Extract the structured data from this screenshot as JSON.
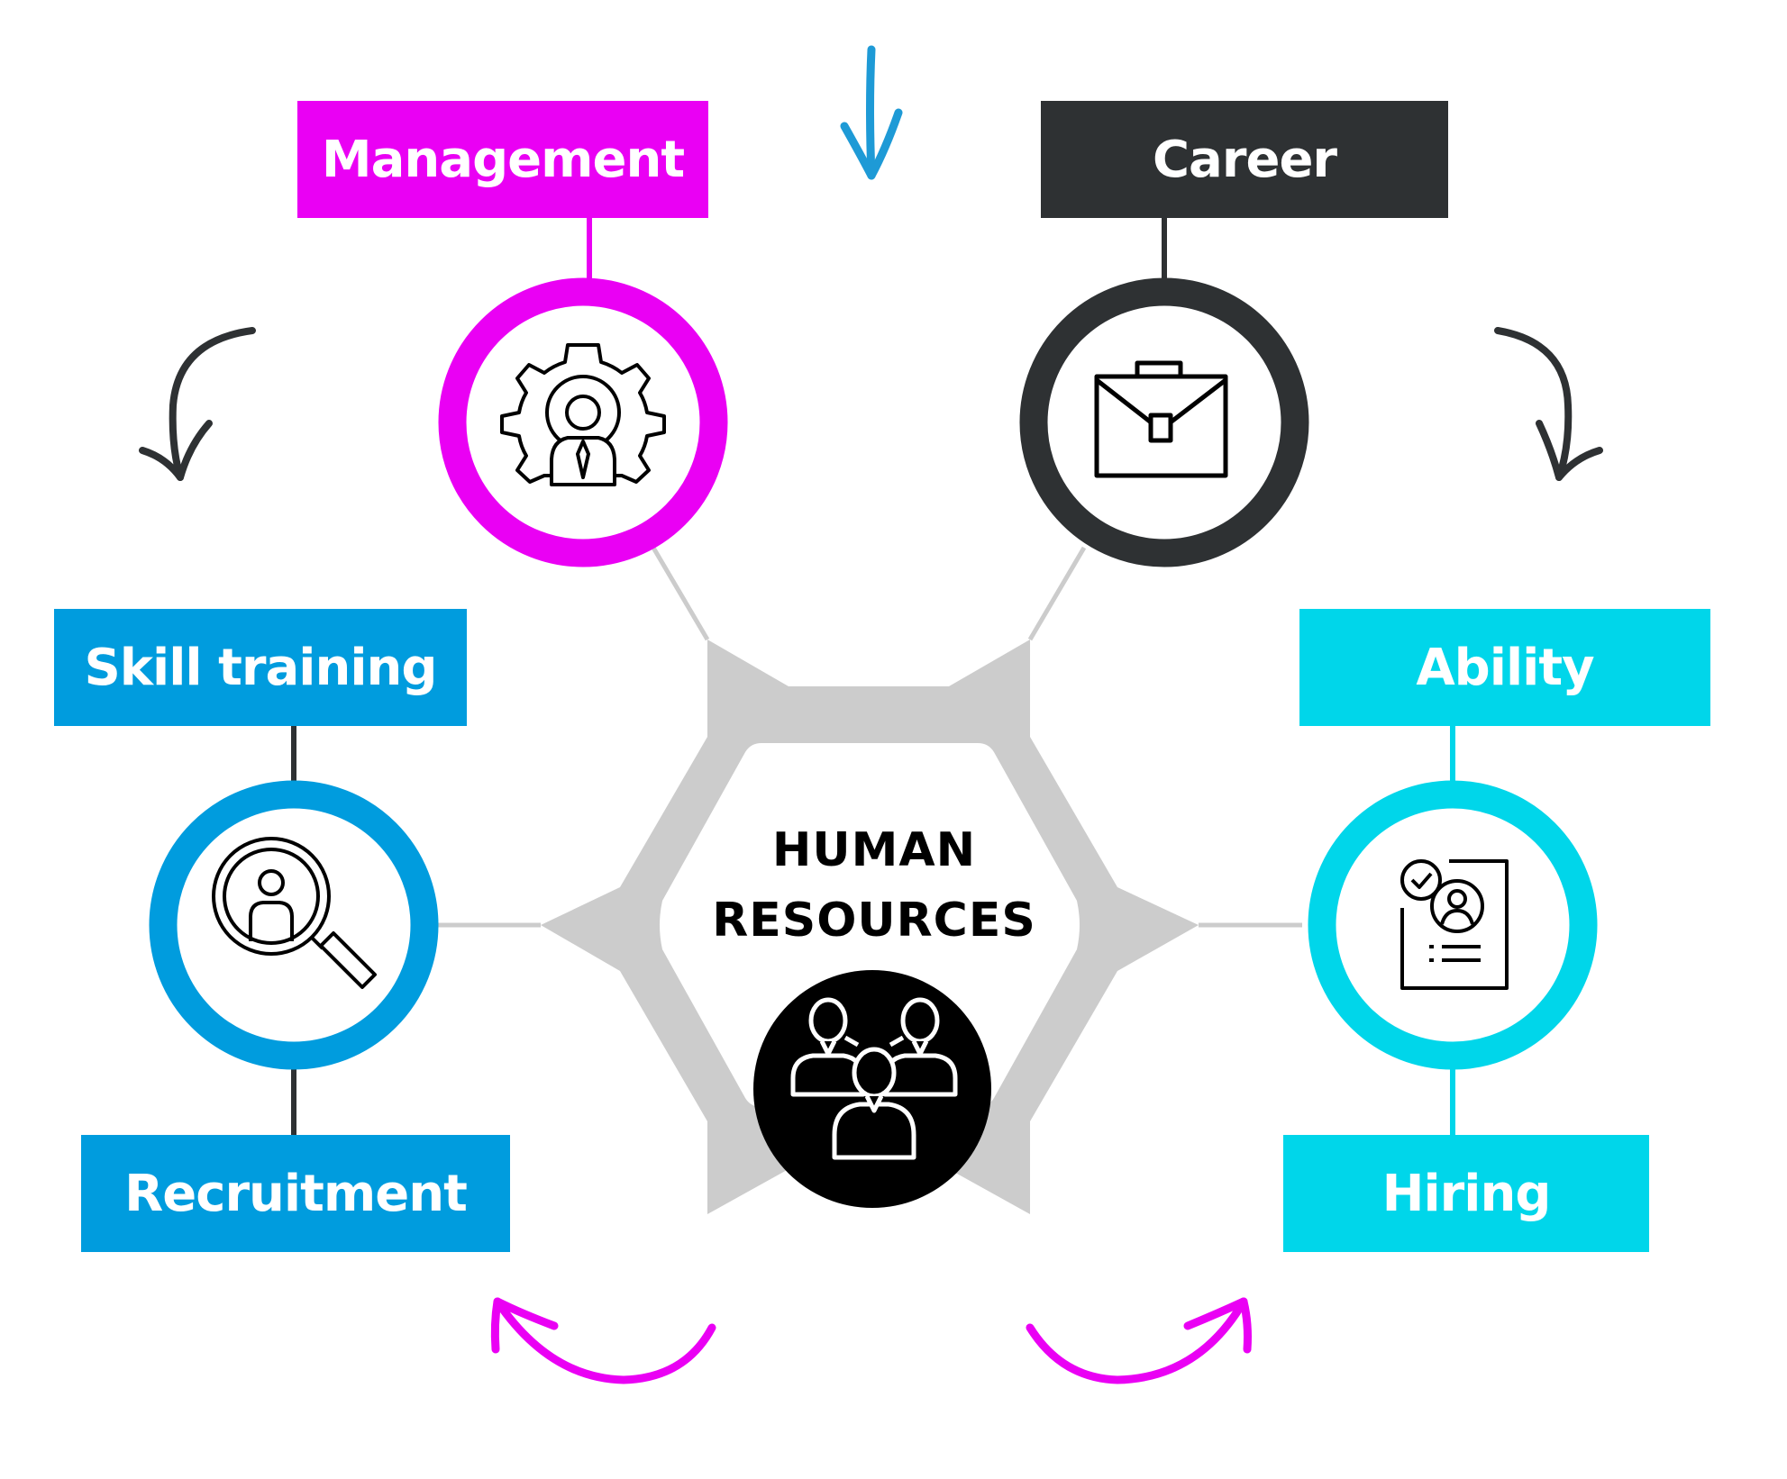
{
  "diagram": {
    "center": {
      "line1": "HUMAN",
      "line2": "RESOURCES",
      "icon": "people-network-icon"
    },
    "nodes": [
      {
        "id": "management",
        "label": "Management",
        "icon": "gear-person-icon",
        "color": "#EA00F4"
      },
      {
        "id": "career",
        "label": "Career",
        "icon": "briefcase-icon",
        "color": "#2E3133"
      },
      {
        "id": "skill",
        "label": "Skill training",
        "icon": "magnifier-person-icon",
        "color": "#009CDE"
      },
      {
        "id": "ability",
        "label": "Ability",
        "icon": "resume-check-icon",
        "color": "#00D6EA"
      }
    ],
    "sub_labels": [
      {
        "id": "recruitment",
        "label": "Recruitment",
        "color": "#009CDE"
      },
      {
        "id": "hiring",
        "label": "Hiring",
        "color": "#00D6EA"
      }
    ],
    "hexagon_color": "#CCCCCC",
    "arrows": [
      {
        "name": "top-down-arrow",
        "color": "#1E9AD6"
      },
      {
        "name": "left-curved-arrow",
        "color": "#2E3133"
      },
      {
        "name": "right-curved-arrow",
        "color": "#2E3133"
      },
      {
        "name": "bottom-left-curved-arrow",
        "color": "#EA00F4"
      },
      {
        "name": "bottom-right-curved-arrow",
        "color": "#EA00F4"
      }
    ]
  }
}
